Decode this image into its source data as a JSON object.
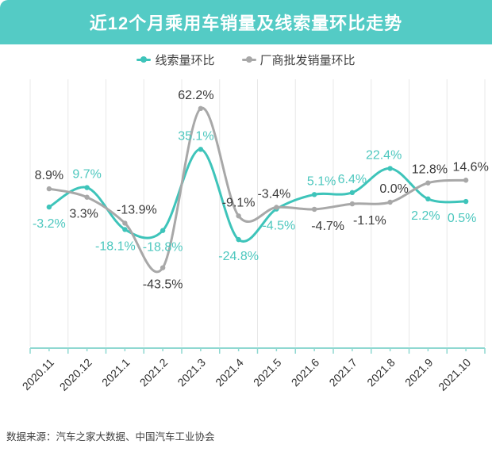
{
  "header": {
    "title": "近12个月乘用车销量及线索量环比走势"
  },
  "legend": [
    {
      "label": "线索量环比",
      "color": "#3ec4ba"
    },
    {
      "label": "厂商批发销量环比",
      "color": "#a8a8a8"
    }
  ],
  "chart_data": {
    "type": "line",
    "title": "近12个月乘用车销量及线索量环比走势",
    "categories": [
      "2020.11",
      "2020.12",
      "2021.1",
      "2021.2",
      "2021.3",
      "2021.4",
      "2021.5",
      "2021.6",
      "2021.7",
      "2021.8",
      "2021.9",
      "2021.10"
    ],
    "series": [
      {
        "name": "线索量环比",
        "color": "#3ec4ba",
        "label_color": "#4cc7be",
        "values": [
          -3.2,
          9.7,
          -18.1,
          -18.8,
          35.1,
          -24.8,
          -4.5,
          5.1,
          6.4,
          22.4,
          2.2,
          0.5
        ],
        "label_side": [
          "below",
          "above",
          "below",
          "below",
          "above",
          "below",
          "below",
          "above",
          "above",
          "above",
          "below",
          "below"
        ],
        "label_dx": [
          0,
          0,
          -12,
          0,
          -6,
          0,
          3,
          9,
          0,
          -8,
          -3,
          -5
        ]
      },
      {
        "name": "厂商批发销量环比",
        "color": "#a8a8a8",
        "label_color": "#3b3b3b",
        "values": [
          8.9,
          3.3,
          -13.9,
          -43.5,
          62.2,
          -9.1,
          -3.4,
          -4.7,
          -1.1,
          0.0,
          12.8,
          14.6
        ],
        "label_side": [
          "above",
          "below",
          "above",
          "below",
          "above",
          "above",
          "above",
          "below",
          "below",
          "above",
          "above",
          "above"
        ],
        "label_dx": [
          0,
          -4,
          15,
          0,
          -6,
          0,
          -3,
          17,
          22,
          5,
          2,
          6
        ]
      }
    ],
    "value_suffix": "%",
    "value_decimals": 1,
    "xlabel": "",
    "ylabel": "",
    "ylim": [
      -75,
      85
    ],
    "grid": true,
    "legend_position": "top"
  },
  "footer": {
    "source": "数据来源：汽车之家大数据、中国汽车工业协会"
  }
}
